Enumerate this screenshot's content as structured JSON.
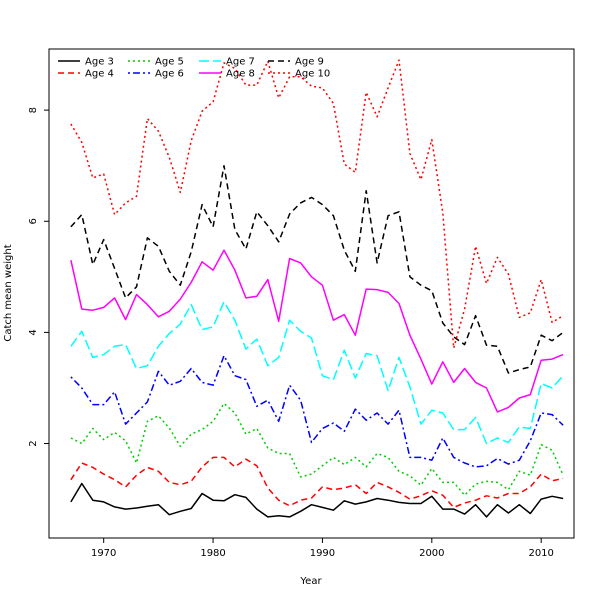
{
  "chart_data": {
    "type": "line",
    "title": "",
    "xlabel": "Year",
    "ylabel": "Catch mean weight",
    "xlim": [
      1965,
      2013
    ],
    "ylim": [
      0.3,
      9.1
    ],
    "xticks": [
      1970,
      1980,
      1990,
      2000,
      2010
    ],
    "yticks": [
      2,
      4,
      6,
      8
    ],
    "grid": false,
    "legend_position": "top-left",
    "x": [
      1967,
      1968,
      1969,
      1970,
      1971,
      1972,
      1973,
      1974,
      1975,
      1976,
      1977,
      1978,
      1979,
      1980,
      1981,
      1982,
      1983,
      1984,
      1985,
      1986,
      1987,
      1988,
      1989,
      1990,
      1991,
      1992,
      1993,
      1994,
      1995,
      1996,
      1997,
      1998,
      1999,
      2000,
      2001,
      2002,
      2003,
      2004,
      2005,
      2006,
      2007,
      2008,
      2009,
      2010,
      2011,
      2012
    ],
    "series": [
      {
        "name": "Age 3",
        "color": "#000000",
        "dash": "solid",
        "values": [
          0.95,
          1.28,
          0.98,
          0.95,
          0.86,
          0.82,
          0.84,
          0.87,
          0.9,
          0.72,
          0.78,
          0.83,
          1.1,
          0.98,
          0.97,
          1.08,
          1.03,
          0.82,
          0.68,
          0.7,
          0.68,
          0.78,
          0.9,
          0.85,
          0.8,
          0.97,
          0.91,
          0.95,
          1.01,
          0.98,
          0.94,
          0.92,
          0.92,
          1.05,
          0.82,
          0.82,
          0.73,
          0.9,
          0.68,
          0.9,
          0.75,
          0.9,
          0.74,
          1.0,
          1.05,
          1.01
        ]
      },
      {
        "name": "Age 4",
        "color": "#ff0000",
        "dash": "dashed",
        "values": [
          1.35,
          1.65,
          1.57,
          1.45,
          1.35,
          1.22,
          1.43,
          1.57,
          1.5,
          1.3,
          1.26,
          1.32,
          1.58,
          1.75,
          1.75,
          1.58,
          1.72,
          1.6,
          1.2,
          0.98,
          0.88,
          0.98,
          1.02,
          1.22,
          1.17,
          1.2,
          1.26,
          1.1,
          1.3,
          1.22,
          1.12,
          1.0,
          1.06,
          1.15,
          1.07,
          0.85,
          0.93,
          0.98,
          1.06,
          1.02,
          1.1,
          1.1,
          1.22,
          1.45,
          1.33,
          1.37
        ]
      },
      {
        "name": "Age 5",
        "color": "#00cd00",
        "dash": "dotted",
        "values": [
          2.1,
          2.0,
          2.27,
          2.07,
          2.2,
          2.05,
          1.65,
          2.4,
          2.5,
          2.28,
          1.95,
          2.17,
          2.25,
          2.4,
          2.72,
          2.55,
          2.17,
          2.27,
          1.92,
          1.82,
          1.82,
          1.4,
          1.45,
          1.6,
          1.75,
          1.62,
          1.75,
          1.58,
          1.82,
          1.75,
          1.5,
          1.42,
          1.25,
          1.55,
          1.3,
          1.3,
          1.07,
          1.27,
          1.32,
          1.3,
          1.17,
          1.5,
          1.43,
          1.98,
          1.88,
          1.43
        ]
      },
      {
        "name": "Age 6",
        "color": "#0000ff",
        "dash": "dashdot",
        "values": [
          3.2,
          3.0,
          2.7,
          2.7,
          2.93,
          2.35,
          2.55,
          2.75,
          3.3,
          3.05,
          3.12,
          3.35,
          3.1,
          3.05,
          3.58,
          3.22,
          3.15,
          2.67,
          2.78,
          2.4,
          3.05,
          2.78,
          2.02,
          2.27,
          2.37,
          2.22,
          2.62,
          2.42,
          2.55,
          2.35,
          2.6,
          1.75,
          1.75,
          1.7,
          2.1,
          1.75,
          1.65,
          1.58,
          1.6,
          1.73,
          1.63,
          1.7,
          2.05,
          2.55,
          2.52,
          2.33
        ]
      },
      {
        "name": "Age 7",
        "color": "#00ffff",
        "dash": "longdash",
        "values": [
          3.75,
          4.02,
          3.55,
          3.6,
          3.75,
          3.78,
          3.35,
          3.4,
          3.75,
          3.98,
          4.15,
          4.5,
          4.05,
          4.1,
          4.55,
          4.22,
          3.7,
          3.88,
          3.4,
          3.55,
          4.22,
          4.02,
          3.9,
          3.22,
          3.15,
          3.68,
          3.18,
          3.62,
          3.58,
          2.95,
          3.55,
          3.02,
          2.35,
          2.6,
          2.55,
          2.25,
          2.25,
          2.47,
          2.0,
          2.1,
          2.02,
          2.3,
          2.27,
          3.08,
          3.0,
          3.22
        ]
      },
      {
        "name": "Age 8",
        "color": "#ff00ff",
        "dash": "solid",
        "values": [
          5.3,
          4.42,
          4.4,
          4.45,
          4.62,
          4.23,
          4.68,
          4.5,
          4.28,
          4.38,
          4.6,
          4.9,
          5.27,
          5.12,
          5.48,
          5.12,
          4.62,
          4.65,
          4.95,
          4.2,
          5.33,
          5.25,
          5.0,
          4.85,
          4.22,
          4.32,
          3.95,
          4.78,
          4.77,
          4.72,
          4.52,
          3.95,
          3.52,
          3.07,
          3.47,
          3.1,
          3.35,
          3.1,
          3.0,
          2.57,
          2.65,
          2.82,
          2.88,
          3.5,
          3.52,
          3.6
        ]
      },
      {
        "name": "Age 9",
        "color": "#000000",
        "dash": "dashed",
        "values": [
          5.9,
          6.12,
          5.22,
          5.67,
          5.15,
          4.62,
          4.82,
          5.7,
          5.55,
          5.1,
          4.85,
          5.45,
          6.3,
          5.9,
          7.0,
          5.85,
          5.5,
          6.17,
          5.92,
          5.63,
          6.13,
          6.33,
          6.43,
          6.3,
          6.1,
          5.48,
          5.1,
          6.55,
          5.25,
          6.1,
          6.17,
          5.0,
          4.85,
          4.75,
          4.17,
          3.92,
          3.78,
          4.3,
          3.77,
          3.75,
          3.27,
          3.33,
          3.38,
          3.95,
          3.85,
          4.0
        ]
      },
      {
        "name": "Age 10",
        "color": "#ff0000",
        "dash": "dotted",
        "values": [
          7.75,
          7.42,
          6.78,
          6.85,
          6.12,
          6.33,
          6.45,
          7.85,
          7.62,
          7.15,
          6.52,
          7.45,
          7.98,
          8.15,
          8.85,
          8.75,
          8.45,
          8.45,
          8.88,
          8.22,
          8.6,
          8.6,
          8.43,
          8.4,
          8.12,
          7.03,
          6.88,
          8.32,
          7.88,
          8.4,
          8.9,
          7.22,
          6.75,
          7.47,
          6.15,
          3.72,
          4.42,
          5.55,
          4.88,
          5.35,
          5.05,
          4.27,
          4.35,
          4.95,
          4.18,
          4.3
        ]
      }
    ]
  }
}
